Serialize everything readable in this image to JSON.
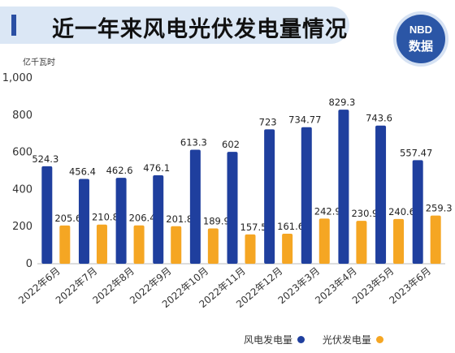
{
  "title": "近一年来风电光伏发电量情况",
  "logo": {
    "line1": "NBD",
    "line2": "数据"
  },
  "colors": {
    "wind": "#1f3f9e",
    "solar": "#f5a623",
    "accent": "#2a4fa3"
  },
  "chart_data": {
    "type": "bar",
    "ylabel": "亿千瓦时",
    "ylim": [
      0,
      1000
    ],
    "yticks": [
      "0",
      "200",
      "400",
      "600",
      "800",
      "1,000"
    ],
    "grid": false,
    "legend_position": "bottom-right",
    "categories": [
      "2022年6月",
      "2022年7月",
      "2022年8月",
      "2022年9月",
      "2022年10月",
      "2022年11月",
      "2022年12月",
      "2023年3月",
      "2023年4月",
      "2023年5月",
      "2023年6月"
    ],
    "series": [
      {
        "name": "风电发电量",
        "color": "#1f3f9e",
        "values": [
          524.3,
          456.4,
          462.6,
          476.1,
          613.3,
          602,
          723,
          734.77,
          829.3,
          743.6,
          557.47
        ],
        "labels": [
          "524.3",
          "456.4",
          "462.6",
          "476.1",
          "613.3",
          "602",
          "723",
          "734.77",
          "829.3",
          "743.6",
          "557.47"
        ]
      },
      {
        "name": "光伏发电量",
        "color": "#f5a623",
        "values": [
          205.6,
          210.8,
          206.4,
          201.8,
          189.9,
          157.5,
          161.6,
          242.9,
          230.9,
          240.6,
          259.3
        ],
        "labels": [
          "205.6",
          "210.8",
          "206.4",
          "201.8",
          "189.9",
          "157.5",
          "161.6",
          "242.9",
          "230.9",
          "240.6",
          "259.3"
        ]
      }
    ]
  }
}
